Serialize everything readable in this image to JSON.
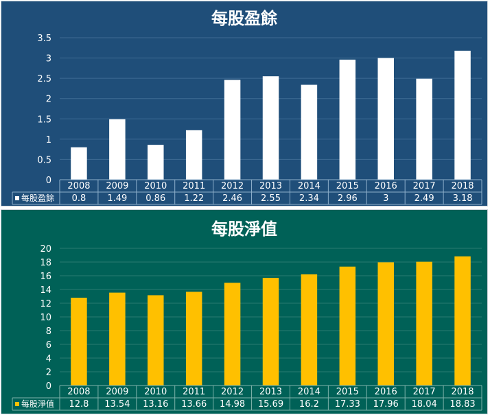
{
  "chart_data": [
    {
      "type": "bar",
      "title": "每股盈餘",
      "categories": [
        "2008",
        "2009",
        "2010",
        "2011",
        "2012",
        "2013",
        "2014",
        "2015",
        "2016",
        "2017",
        "2018"
      ],
      "series": [
        {
          "name": "每股盈餘",
          "values": [
            0.8,
            1.49,
            0.86,
            1.22,
            2.46,
            2.55,
            2.34,
            2.96,
            3,
            2.49,
            3.18
          ]
        }
      ],
      "ylim": [
        0,
        3.5
      ],
      "yticks": [
        "0",
        "0.5",
        "1",
        "1.5",
        "2",
        "2.5",
        "3",
        "3.5"
      ],
      "ytick_values": [
        0,
        0.5,
        1,
        1.5,
        2,
        2.5,
        3,
        3.5
      ],
      "data_table": true,
      "colors": {
        "background": "#1f4e79",
        "bar": "#ffffff",
        "grid": "#3f6b94",
        "table_line": "#8fb0cc",
        "text": "#ffffff"
      }
    },
    {
      "type": "bar",
      "title": "每股淨值",
      "categories": [
        "2008",
        "2009",
        "2010",
        "2011",
        "2012",
        "2013",
        "2014",
        "2015",
        "2016",
        "2017",
        "2018"
      ],
      "series": [
        {
          "name": "每股淨值",
          "values": [
            12.8,
            13.54,
            13.16,
            13.66,
            14.98,
            15.69,
            16.2,
            17.33,
            17.96,
            18.04,
            18.83
          ]
        }
      ],
      "ylim": [
        0,
        20
      ],
      "yticks": [
        "0",
        "2",
        "4",
        "6",
        "8",
        "10",
        "12",
        "14",
        "16",
        "18",
        "20"
      ],
      "ytick_values": [
        0,
        2,
        4,
        6,
        8,
        10,
        12,
        14,
        16,
        18,
        20
      ],
      "data_table": true,
      "colors": {
        "background": "#006157",
        "bar": "#ffc000",
        "grid": "#2a7c72",
        "table_line": "#7fb3ab",
        "text": "#ffffff"
      }
    }
  ]
}
